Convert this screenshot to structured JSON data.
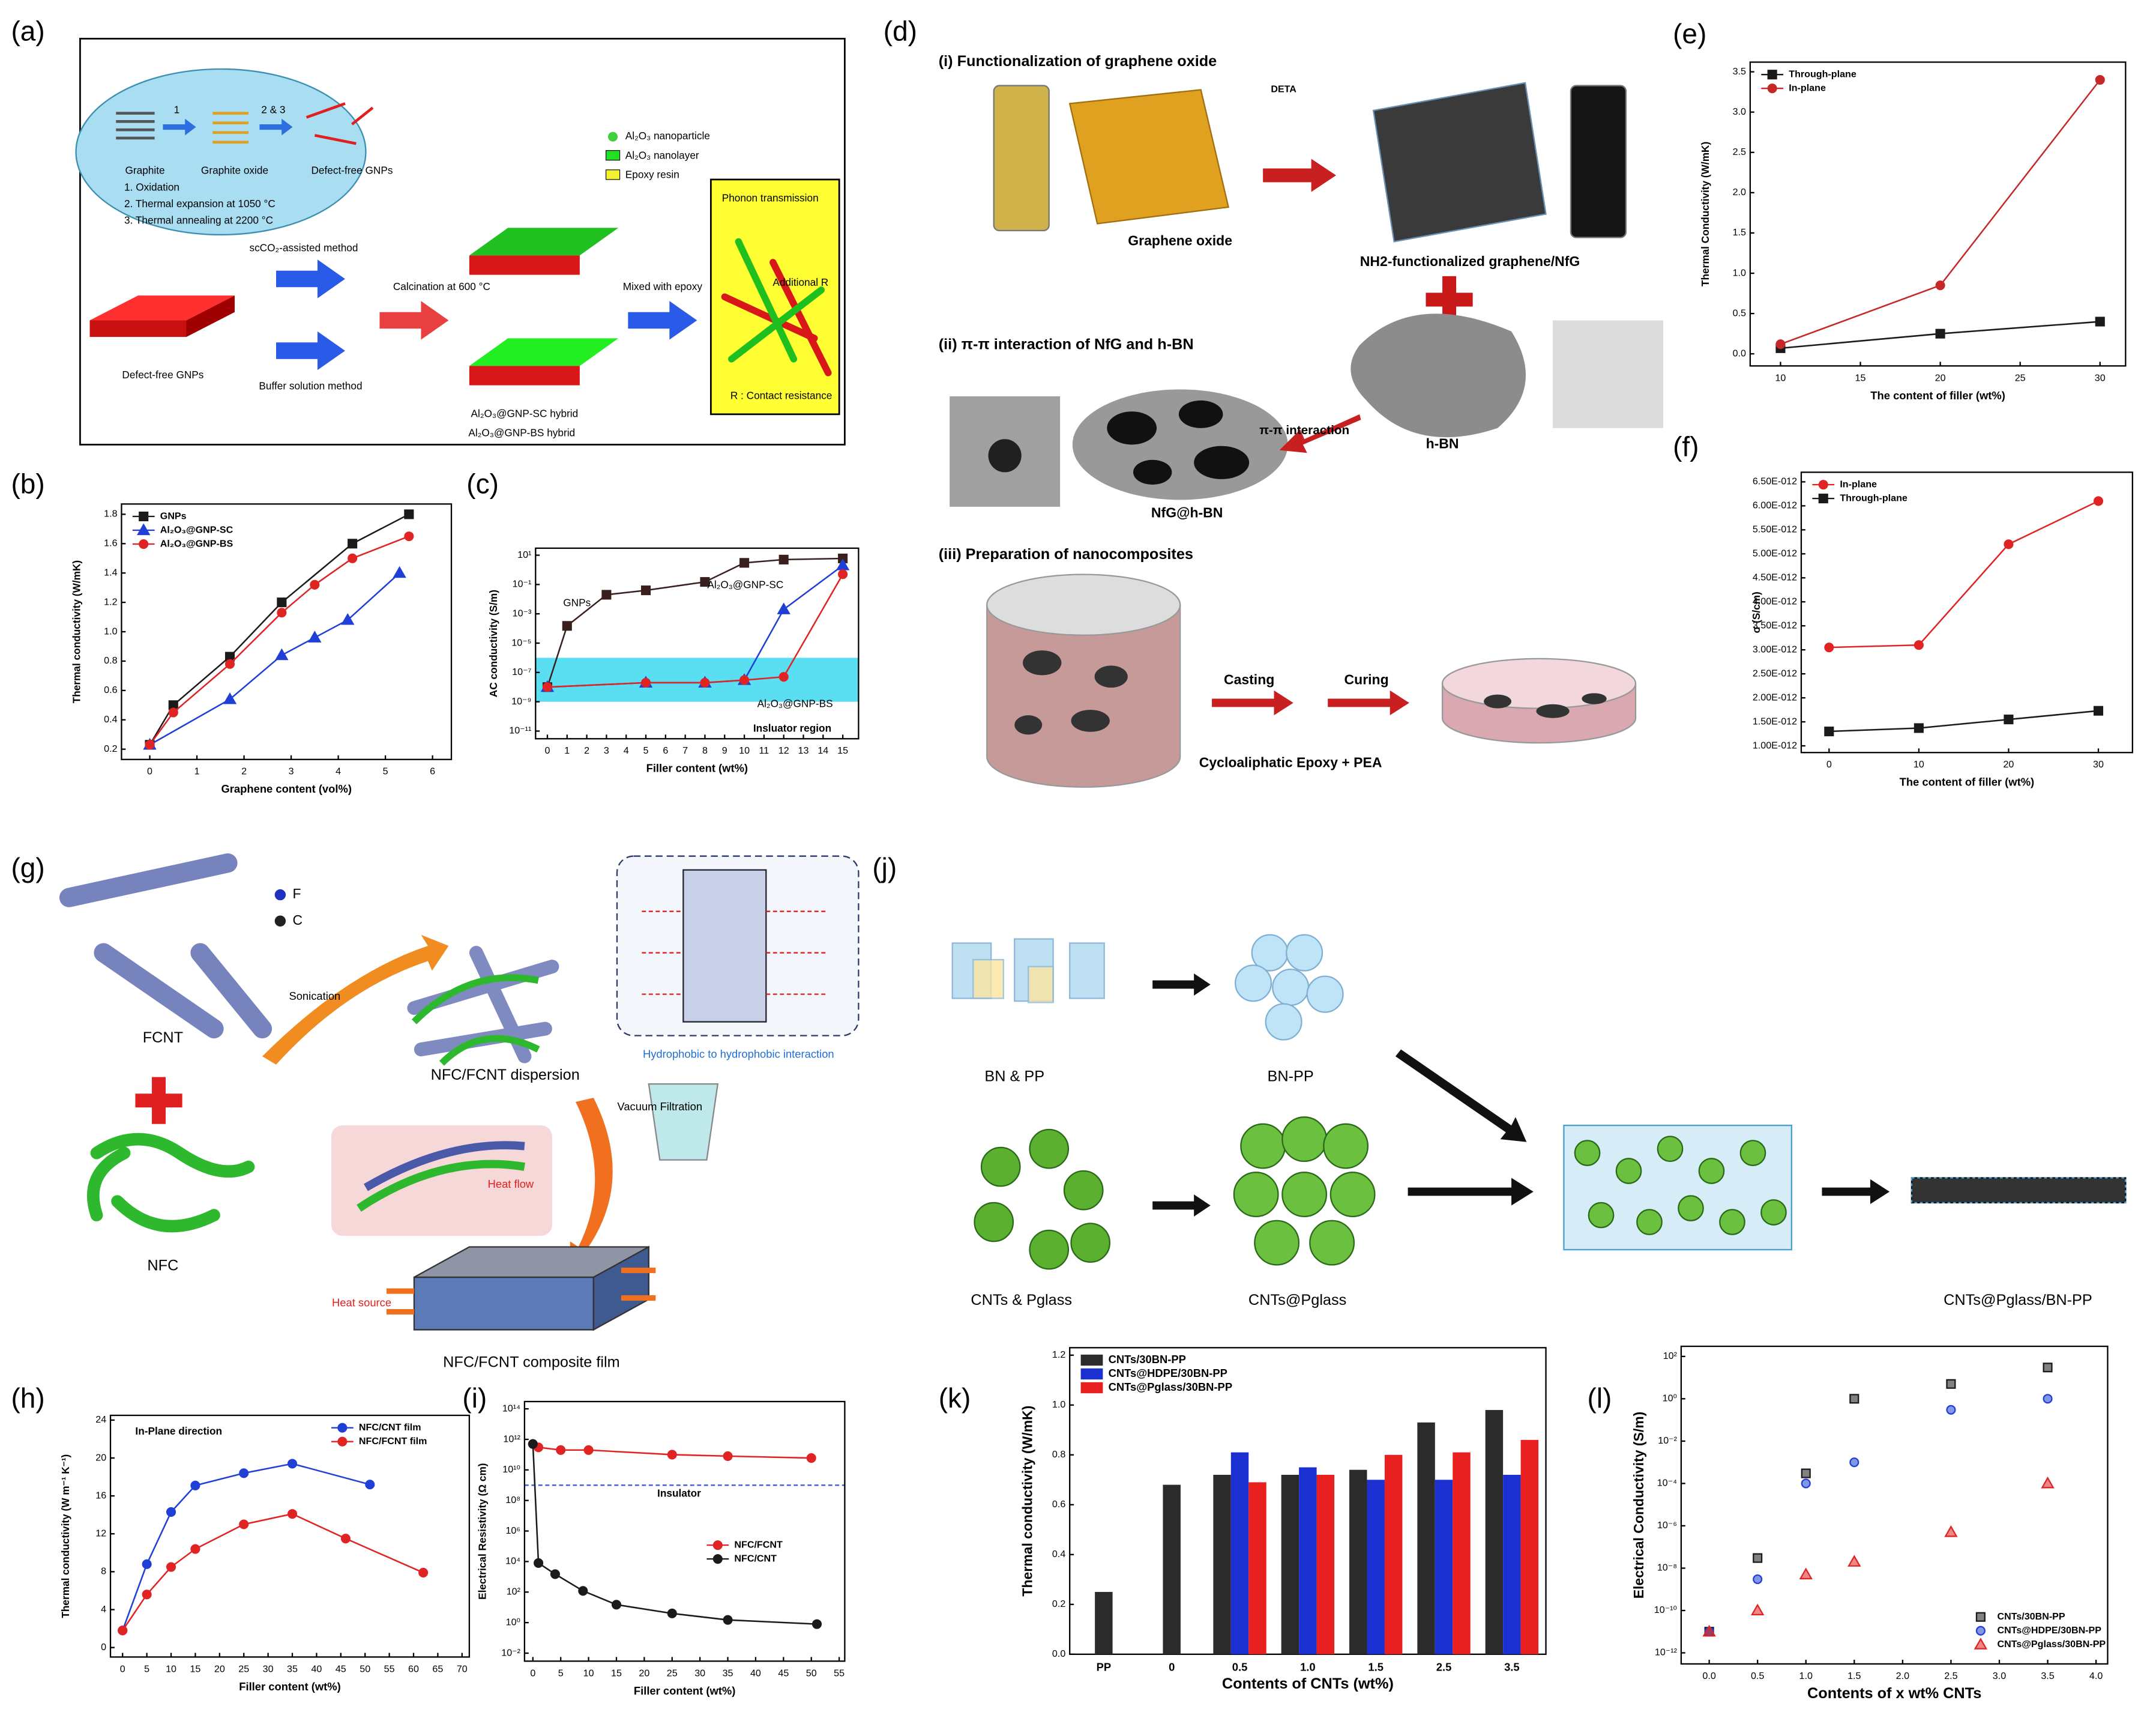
{
  "diagrams": [
    {
      "panel": "(a)",
      "labels": [
        "Graphite",
        "Graphite oxide",
        "Defect-free GNPs",
        "1",
        "2 & 3",
        "1. Oxidation",
        "2. Thermal expansion at 1050 °C",
        "3. Thermal annealing at 2200 °C",
        "Al₂O₃ nanoparticle",
        "Al₂O₃ nanolayer",
        "Epoxy resin",
        "scCO₂-assisted method",
        "Buffer solution method",
        "Calcination at 600 °C",
        "Mixed with epoxy",
        "Al₂O₃@GNP-SC hybrid",
        "Al₂O₃@GNP-BS hybrid",
        "Defect-free GNPs",
        "Phonon transmission",
        "Additional R",
        "R : Contact resistance"
      ]
    },
    {
      "panel": "(d)",
      "labels": [
        "(i) Functionalization of graphene oxide",
        "DETA",
        "Graphene oxide",
        "NH2-functionalized graphene/NfG",
        "(ii) π-π interaction of NfG and h-BN",
        "π-π interaction",
        "h-BN",
        "NfG@h-BN",
        "(iii) Preparation of nanocomposites",
        "Casting",
        "Curing",
        "Cycloaliphatic Epoxy + PEA"
      ]
    },
    {
      "panel": "(g)",
      "labels": [
        "F",
        "C",
        "FCNT",
        "Sonication",
        "NFC/FCNT dispersion",
        "Hydrophobic to hydrophobic interaction",
        "Vacuum Filtration",
        "Heat flow",
        "Heat source",
        "NFC/FCNT composite film",
        "NFC"
      ]
    },
    {
      "panel": "(j)",
      "labels": [
        "BN & PP",
        "BN-PP",
        "CNTs & Pglass",
        "CNTs@Pglass",
        "CNTs@Pglass/BN-PP"
      ]
    }
  ],
  "chart_data": [
    {
      "panel": "(b)",
      "type": "line",
      "xlabel": "Graphene content (vol%)",
      "ylabel": "Thermal conductivity (W/mK)",
      "xlim": [
        -0.6,
        6.4
      ],
      "ylim": [
        0.13,
        1.87
      ],
      "xticks": [
        0,
        1,
        2,
        3,
        4,
        5,
        6
      ],
      "yticks": [
        0.2,
        0.4,
        0.6,
        0.8,
        {
          "value": 1,
          "label": "1.0"
        },
        1.2,
        1.4,
        1.6,
        1.8
      ],
      "legend": "upper left",
      "series": [
        {
          "name": "GNPs",
          "color": "#1a1a1a",
          "marker": "square",
          "x": [
            0,
            0.5,
            1.7,
            2.8,
            4.3,
            5.5
          ],
          "values": [
            0.23,
            0.5,
            0.83,
            1.2,
            1.6,
            1.8
          ]
        },
        {
          "name": "Al₂O₃@GNP-SC",
          "color": "#1f3fd6",
          "marker": "triangle",
          "x": [
            0,
            1.7,
            2.8,
            3.5,
            4.2,
            5.3
          ],
          "values": [
            0.23,
            0.54,
            0.84,
            0.96,
            1.08,
            1.4
          ]
        },
        {
          "name": "Al₂O₃@GNP-BS",
          "color": "#e02424",
          "marker": "circle",
          "x": [
            0,
            0.5,
            1.7,
            2.8,
            3.5,
            4.3,
            5.5
          ],
          "values": [
            0.23,
            0.45,
            0.78,
            1.13,
            1.32,
            1.5,
            1.65
          ]
        }
      ]
    },
    {
      "panel": "(c)",
      "type": "line",
      "xlabel": "Filler content (wt%)",
      "ylabel": "AC conductivity (S/m)",
      "yscale": "log",
      "xlim": [
        -0.6,
        15.8
      ],
      "ylim": [
        3e-12,
        30
      ],
      "xticks": [
        0,
        1,
        2,
        3,
        4,
        5,
        6,
        7,
        8,
        9,
        10,
        11,
        12,
        13,
        14,
        15
      ],
      "yticks": [
        {
          "value": 10,
          "label": "10¹"
        },
        {
          "value": 0.1,
          "label": "10⁻¹"
        },
        {
          "value": 0.001,
          "label": "10⁻³"
        },
        {
          "value": 1e-05,
          "label": "10⁻⁵"
        },
        {
          "value": 1e-07,
          "label": "10⁻⁷"
        },
        {
          "value": 1e-09,
          "label": "10⁻⁹"
        },
        {
          "value": 1e-11,
          "label": "10⁻¹¹"
        }
      ],
      "legend": "inline",
      "shaded_range": [
        1e-09,
        1e-06
      ],
      "annotations": [
        "Insluator region"
      ],
      "series": [
        {
          "name": "GNPs",
          "color": "#3a1f1f",
          "marker": "square",
          "x": [
            0,
            1,
            3,
            5,
            8,
            10,
            12,
            15
          ],
          "values": [
            1e-08,
            0.00015,
            0.02,
            0.04,
            0.15,
            3,
            5,
            6
          ]
        },
        {
          "name": "Al₂O₃@GNP-SC",
          "color": "#1f3fd6",
          "marker": "triangle",
          "x": [
            0,
            5,
            8,
            10,
            12,
            15
          ],
          "values": [
            1e-08,
            2e-08,
            2e-08,
            3e-08,
            0.002,
            2
          ]
        },
        {
          "name": "Al₂O₃@GNP-BS",
          "color": "#e02424",
          "marker": "circle",
          "x": [
            0,
            5,
            8,
            10,
            12,
            15
          ],
          "values": [
            1e-08,
            2e-08,
            2e-08,
            3e-08,
            5e-08,
            0.5
          ]
        }
      ]
    },
    {
      "panel": "(e)",
      "type": "line",
      "xlabel": "The content of filler (wt%)",
      "ylabel": "Thermal Conductivity (W/mK)",
      "xlim": [
        8.1,
        31.6
      ],
      "ylim": [
        -0.15,
        3.62
      ],
      "xticks": [
        10,
        15,
        20,
        25,
        30
      ],
      "yticks": [
        {
          "value": 0,
          "label": "0.0"
        },
        0.5,
        {
          "value": 1,
          "label": "1.0"
        },
        1.5,
        {
          "value": 2,
          "label": "2.0"
        },
        2.5,
        {
          "value": 3,
          "label": "3.0"
        },
        3.5
      ],
      "legend": "upper left",
      "x": [
        10,
        20,
        30
      ],
      "series": [
        {
          "name": "Through-plane",
          "color": "#1a1a1a",
          "marker": "square",
          "values": [
            0.07,
            0.25,
            0.4
          ]
        },
        {
          "name": "In-plane",
          "color": "#c62828",
          "marker": "circle",
          "values": [
            0.12,
            0.85,
            3.4
          ]
        }
      ]
    },
    {
      "panel": "(f)",
      "type": "line",
      "xlabel": "The content of filler (wt%)",
      "ylabel": "σ (S/cm)",
      "xlim": [
        -3.1,
        33.8
      ],
      "ylim": [
        8.6e-13,
        6.7e-12
      ],
      "xticks": [
        0,
        10,
        20,
        30
      ],
      "yticks": [
        {
          "value": 1e-12,
          "label": "1.00E-012"
        },
        {
          "value": 1.5e-12,
          "label": "1.50E-012"
        },
        {
          "value": 2e-12,
          "label": "2.00E-012"
        },
        {
          "value": 2.5e-12,
          "label": "2.50E-012"
        },
        {
          "value": 3e-12,
          "label": "3.00E-012"
        },
        {
          "value": 3.5e-12,
          "label": "3.50E-012"
        },
        {
          "value": 4e-12,
          "label": "4.00E-012"
        },
        {
          "value": 4.5e-12,
          "label": "4.50E-012"
        },
        {
          "value": 5e-12,
          "label": "5.00E-012"
        },
        {
          "value": 5.5e-12,
          "label": "5.50E-012"
        },
        {
          "value": 6e-12,
          "label": "6.00E-012"
        },
        {
          "value": 6.5e-12,
          "label": "6.50E-012"
        }
      ],
      "legend": "upper left",
      "x": [
        0,
        10,
        20,
        30
      ],
      "series": [
        {
          "name": "In-plane",
          "color": "#e02424",
          "marker": "circle",
          "values": [
            3.05e-12,
            3.1e-12,
            5.2e-12,
            6.1e-12
          ]
        },
        {
          "name": "Through-plane",
          "color": "#1a1a1a",
          "marker": "square",
          "values": [
            1.3e-12,
            1.37e-12,
            1.55e-12,
            1.73e-12
          ]
        }
      ]
    },
    {
      "panel": "(h)",
      "type": "line",
      "xlabel": "Filler content (wt%)",
      "ylabel": "Thermal conductivity (W m⁻¹ K⁻¹)",
      "xlim": [
        -2.5,
        71.5
      ],
      "ylim": [
        -1,
        24.5
      ],
      "xticks": [
        0,
        5,
        10,
        15,
        20,
        25,
        30,
        35,
        40,
        45,
        50,
        55,
        60,
        65,
        70
      ],
      "yticks": [
        0,
        4,
        8,
        12,
        16,
        20,
        24
      ],
      "legend": "upper right",
      "annotations": [
        "In-Plane direction"
      ],
      "series": [
        {
          "name": "NFC/CNT film",
          "color": "#1f3fd6",
          "marker": "circle",
          "x": [
            0,
            5,
            10,
            15,
            25,
            35,
            51
          ],
          "values": [
            1.8,
            8.8,
            14.3,
            17.1,
            18.4,
            19.4,
            17.2
          ]
        },
        {
          "name": "NFC/FCNT film",
          "color": "#e02424",
          "marker": "circle",
          "x": [
            0,
            5,
            10,
            15,
            25,
            35,
            46,
            62
          ],
          "values": [
            1.8,
            5.6,
            8.5,
            10.4,
            13,
            14.1,
            11.5,
            7.9
          ]
        }
      ]
    },
    {
      "panel": "(i)",
      "type": "line",
      "xlabel": "Filler content (wt%)",
      "ylabel": "Electrical Resistivity (Ω cm)",
      "yscale": "log",
      "xlim": [
        -1.5,
        56
      ],
      "ylim": [
        0.003,
        300000000000000.0
      ],
      "xticks": [
        0,
        5,
        10,
        15,
        20,
        25,
        30,
        35,
        40,
        45,
        50,
        55
      ],
      "yticks": [
        {
          "value": 0.01,
          "label": "10⁻²"
        },
        {
          "value": 1,
          "label": "10⁰"
        },
        {
          "value": 100,
          "label": "10²"
        },
        {
          "value": 10000,
          "label": "10⁴"
        },
        {
          "value": 1000000,
          "label": "10⁶"
        },
        {
          "value": 100000000,
          "label": "10⁸"
        },
        {
          "value": 10000000000,
          "label": "10¹⁰"
        },
        {
          "value": 1000000000000,
          "label": "10¹²"
        },
        {
          "value": 100000000000000,
          "label": "10¹⁴"
        }
      ],
      "legend": "center right",
      "reference_line": 1000000000,
      "annotations": [
        "Insulator"
      ],
      "series": [
        {
          "name": "NFC/FCNT",
          "color": "#e02424",
          "marker": "circle",
          "x": [
            0,
            1,
            5,
            10,
            25,
            35,
            50
          ],
          "values": [
            500000000000,
            300000000000,
            200000000000,
            200000000000,
            100000000000,
            80000000000,
            60000000000
          ]
        },
        {
          "name": "NFC/CNT",
          "color": "#1a1a1a",
          "marker": "circle",
          "x": [
            0,
            1,
            4,
            9,
            15,
            25,
            35,
            51
          ],
          "values": [
            500000000000,
            8000,
            1500,
            120,
            15,
            4,
            1.5,
            0.8
          ]
        }
      ]
    },
    {
      "panel": "(k)",
      "type": "bar",
      "xlabel": "Contents of CNTs (wt%)",
      "ylabel": "Thermal conductivity (W/mK)",
      "categories": [
        "PP",
        "0",
        "0.5",
        "1.0",
        "1.5",
        "2.5",
        "3.5"
      ],
      "ylim": [
        0,
        1.23
      ],
      "yticks": [
        {
          "value": 0,
          "label": "0.0"
        },
        0.2,
        0.4,
        0.6,
        0.8,
        {
          "value": 1,
          "label": "1.0"
        },
        1.2
      ],
      "legend": "upper left",
      "series": [
        {
          "name": "CNTs/30BN-PP",
          "color": "#2b2b2b",
          "values": [
            0.25,
            0.68,
            0.72,
            0.72,
            0.74,
            0.93,
            0.98
          ]
        },
        {
          "name": "CNTs@HDPE/30BN-PP",
          "color": "#1c2fd0",
          "values": [
            null,
            null,
            0.81,
            0.75,
            0.7,
            0.7,
            0.72
          ]
        },
        {
          "name": "CNTs@Pglass/30BN-PP",
          "color": "#e8201f",
          "values": [
            null,
            null,
            0.69,
            0.72,
            0.8,
            0.81,
            0.86
          ]
        }
      ]
    },
    {
      "panel": "(l)",
      "type": "scatter",
      "xlabel": "Contents of x wt% CNTs",
      "ylabel": "Electrical Conductivity (S/m)",
      "yscale": "log",
      "xlim": [
        -0.29,
        4.12
      ],
      "ylim": [
        3e-13,
        300
      ],
      "x": [
        0,
        0.5,
        1,
        1.5,
        2.5,
        3.5
      ],
      "xticks": [
        {
          "value": 0,
          "label": "0.0"
        },
        0.5,
        {
          "value": 1,
          "label": "1.0"
        },
        1.5,
        {
          "value": 2,
          "label": "2.0"
        },
        2.5,
        {
          "value": 3,
          "label": "3.0"
        },
        3.5,
        {
          "value": 4,
          "label": "4.0"
        }
      ],
      "yticks": [
        {
          "value": 1e-12,
          "label": "10⁻¹²"
        },
        {
          "value": 1e-10,
          "label": "10⁻¹⁰"
        },
        {
          "value": 1e-08,
          "label": "10⁻⁸"
        },
        {
          "value": 1e-06,
          "label": "10⁻⁶"
        },
        {
          "value": 0.0001,
          "label": "10⁻⁴"
        },
        {
          "value": 0.01,
          "label": "10⁻²"
        },
        {
          "value": 1,
          "label": "10⁰"
        },
        {
          "value": 100,
          "label": "10²"
        }
      ],
      "legend": "lower right",
      "series": [
        {
          "name": "CNTs/30BN-PP",
          "color": "#1a1a1a",
          "marker": "square",
          "values": [
            1e-11,
            3e-08,
            0.0003,
            1,
            5,
            30
          ]
        },
        {
          "name": "CNTs@HDPE/30BN-PP",
          "color": "#1f3fd6",
          "marker": "circle",
          "values": [
            1e-11,
            3e-09,
            0.0001,
            0.001,
            0.3,
            1
          ]
        },
        {
          "name": "CNTs@Pglass/30BN-PP",
          "color": "#e02424",
          "marker": "triangle",
          "values": [
            1e-11,
            1e-10,
            5e-09,
            2e-08,
            5e-07,
            0.0001
          ]
        }
      ]
    }
  ]
}
